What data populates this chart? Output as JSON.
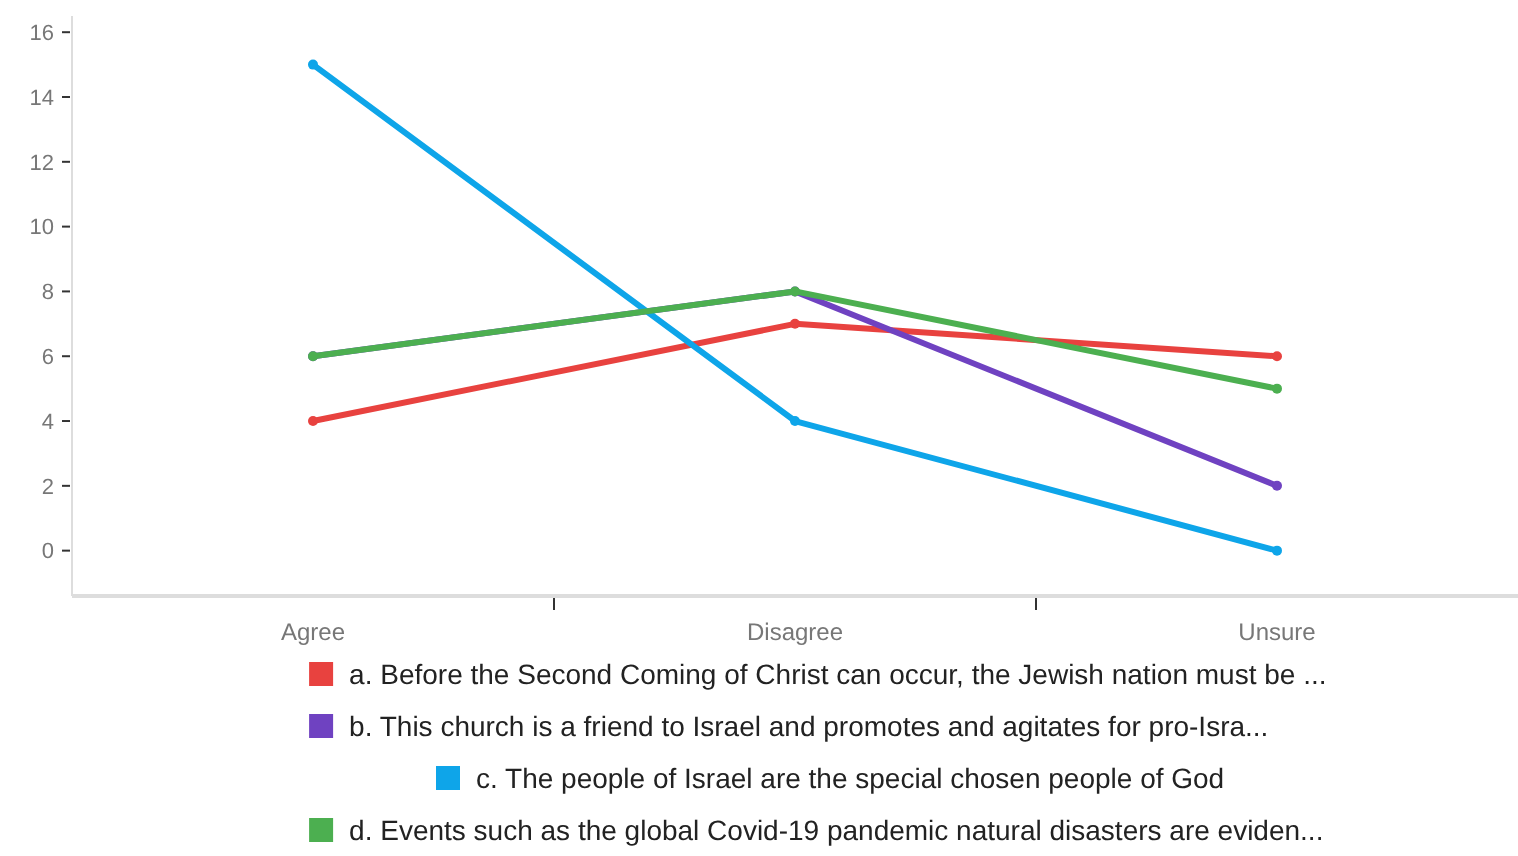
{
  "chart_data": {
    "type": "line",
    "categories": [
      "Agree",
      "Disagree",
      "Unsure"
    ],
    "series": [
      {
        "name": "a. Before the Second Coming of Christ can occur, the Jewish nation must be ...",
        "color": "#e8423f",
        "values": [
          4,
          7,
          6
        ]
      },
      {
        "name": "b. This church is a friend to Israel and promotes and agitates for pro-Isra...",
        "color": "#6f42c1",
        "values": [
          6,
          8,
          2
        ]
      },
      {
        "name": "c. The people of Israel are the special chosen people of God",
        "color": "#0ea5e9",
        "values": [
          15,
          4,
          0
        ]
      },
      {
        "name": "d. Events such as the global Covid-19 pandemic natural disasters are eviden...",
        "color": "#4caf50",
        "values": [
          6,
          8,
          5
        ]
      }
    ],
    "ylim": [
      -1.4,
      16.5
    ],
    "yticks": [
      0,
      2,
      4,
      6,
      8,
      10,
      12,
      14,
      16
    ],
    "legend": "bottom",
    "marker": "circle",
    "grid": false
  }
}
